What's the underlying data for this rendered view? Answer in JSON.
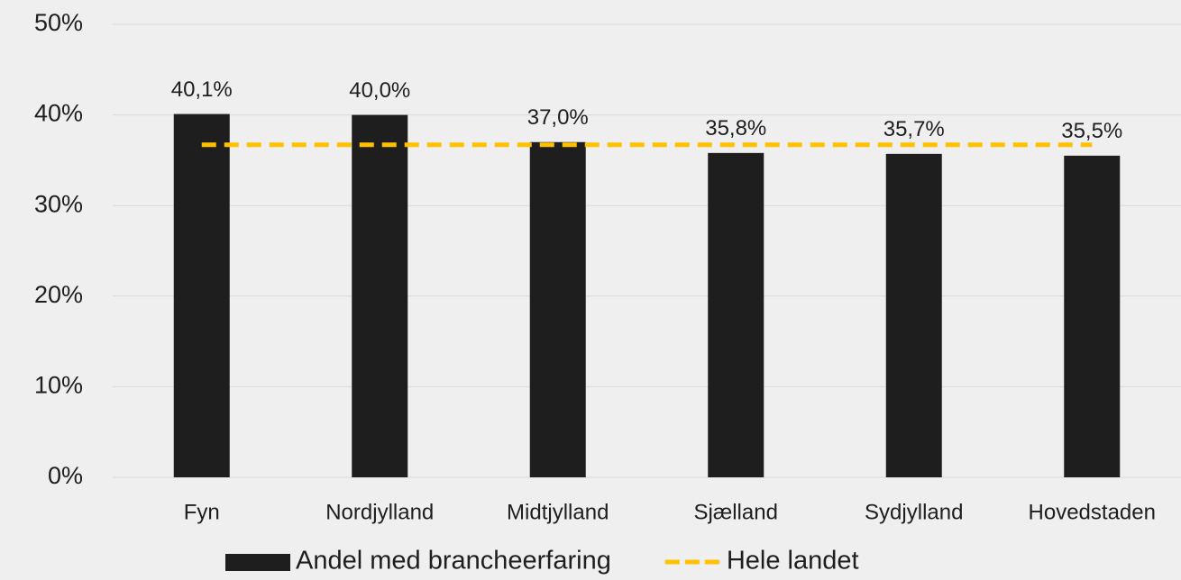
{
  "chart_data": {
    "type": "bar",
    "categories": [
      "Fyn",
      "Nordjylland",
      "Midtjylland",
      "Sjælland",
      "Sydjylland",
      "Hovedstaden"
    ],
    "series": [
      {
        "name": "Andel med brancheerfaring",
        "type": "bar",
        "color": "#1e1e1e",
        "values": [
          40.1,
          40.0,
          37.0,
          35.8,
          35.7,
          35.5
        ],
        "value_labels": [
          "40,1%",
          "40,0%",
          "37,0%",
          "35,8%",
          "35,7%",
          "35,5%"
        ]
      },
      {
        "name": "Hele landet",
        "type": "line",
        "color": "#ffc000",
        "dashed": true,
        "values": [
          36.7,
          36.7,
          36.7,
          36.7,
          36.7,
          36.7
        ]
      }
    ],
    "ylim": [
      0,
      50
    ],
    "yticks": [
      {
        "value": 0,
        "label": "0%"
      },
      {
        "value": 10,
        "label": "10%"
      },
      {
        "value": 20,
        "label": "20%"
      },
      {
        "value": 30,
        "label": "30%"
      },
      {
        "value": 40,
        "label": "40%"
      },
      {
        "value": 50,
        "label": "50%"
      }
    ],
    "grid": true,
    "legend": "bottom"
  }
}
